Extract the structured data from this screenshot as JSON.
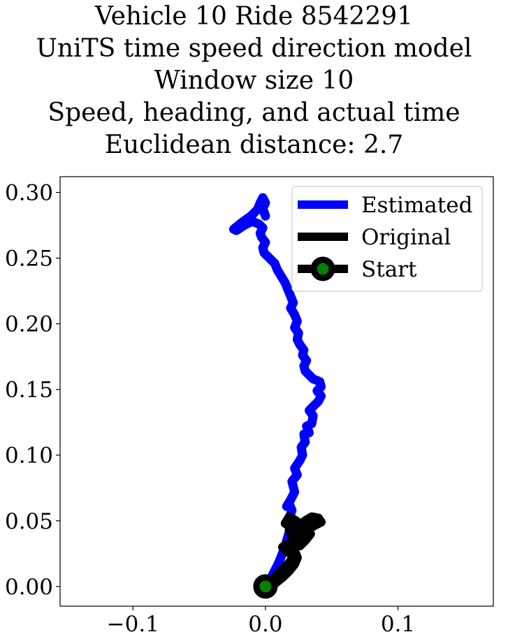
{
  "title_lines": [
    "Vehicle 10 Ride 8542291",
    "UniTS time speed direction model",
    "Window size 10",
    "Speed, heading, and actual time",
    "Euclidean distance: 2.7"
  ],
  "chart_data": {
    "type": "line",
    "title": "Vehicle 10 Ride 8542291\nUniTS time speed direction model\nWindow size 10\nSpeed, heading, and actual time\nEuclidean distance: 2.7",
    "xlabel": "",
    "ylabel": "",
    "xlim": [
      -0.155,
      0.172
    ],
    "ylim": [
      -0.015,
      0.312
    ],
    "x_ticks": [
      -0.1,
      0.0,
      0.1
    ],
    "x_tick_labels": [
      "−0.1",
      "0.0",
      "0.1"
    ],
    "y_ticks": [
      0.0,
      0.05,
      0.1,
      0.15,
      0.2,
      0.25,
      0.3
    ],
    "y_tick_labels": [
      "0.00",
      "0.05",
      "0.10",
      "0.15",
      "0.20",
      "0.25",
      "0.30"
    ],
    "grid": false,
    "legend_position": "top-right",
    "series": [
      {
        "name": "Estimated",
        "color": "#0000ff",
        "x": [
          0.0,
          0.005,
          0.01,
          0.014,
          0.017,
          0.019,
          0.018,
          0.02,
          0.018,
          0.016,
          0.019,
          0.022,
          0.02,
          0.024,
          0.022,
          0.026,
          0.028,
          0.027,
          0.03,
          0.029,
          0.033,
          0.031,
          0.035,
          0.036,
          0.033,
          0.037,
          0.04,
          0.042,
          0.039,
          0.042,
          0.041,
          0.036,
          0.033,
          0.03,
          0.029,
          0.031,
          0.028,
          0.029,
          0.026,
          0.024,
          0.025,
          0.022,
          0.024,
          0.022,
          0.019,
          0.021,
          0.019,
          0.017,
          0.015,
          0.012,
          0.009,
          0.007,
          0.003,
          -0.001,
          -0.002,
          0.0,
          -0.003,
          -0.004,
          -0.002,
          -0.005,
          -0.01,
          -0.016,
          -0.022,
          -0.024,
          -0.018,
          -0.011,
          -0.006,
          -0.004,
          -0.002,
          0.0,
          -0.002,
          0.0
        ],
        "y": [
          0.0,
          0.008,
          0.018,
          0.028,
          0.038,
          0.046,
          0.052,
          0.058,
          0.063,
          0.061,
          0.066,
          0.072,
          0.08,
          0.085,
          0.09,
          0.096,
          0.1,
          0.106,
          0.11,
          0.116,
          0.117,
          0.122,
          0.124,
          0.13,
          0.134,
          0.138,
          0.141,
          0.145,
          0.149,
          0.152,
          0.156,
          0.158,
          0.161,
          0.164,
          0.168,
          0.172,
          0.176,
          0.18,
          0.184,
          0.188,
          0.193,
          0.197,
          0.202,
          0.207,
          0.212,
          0.216,
          0.221,
          0.226,
          0.231,
          0.236,
          0.241,
          0.246,
          0.25,
          0.254,
          0.258,
          0.262,
          0.266,
          0.269,
          0.273,
          0.276,
          0.278,
          0.275,
          0.271,
          0.272,
          0.277,
          0.282,
          0.287,
          0.292,
          0.296,
          0.292,
          0.288,
          0.282
        ]
      },
      {
        "name": "Original",
        "color": "#000000",
        "x": [
          0.0,
          0.006,
          0.012,
          0.018,
          0.022,
          0.017,
          0.013,
          0.02,
          0.026,
          0.03,
          0.034,
          0.03,
          0.024,
          0.018,
          0.02,
          0.026,
          0.033,
          0.038,
          0.042,
          0.04,
          0.035,
          0.03,
          0.027,
          0.023,
          0.018,
          0.015,
          0.021,
          0.025,
          0.022,
          0.019,
          0.022,
          0.024,
          0.022,
          0.018,
          0.013,
          0.008,
          0.006
        ],
        "y": [
          0.0,
          0.006,
          0.012,
          0.018,
          0.024,
          0.026,
          0.03,
          0.034,
          0.031,
          0.035,
          0.04,
          0.044,
          0.046,
          0.043,
          0.039,
          0.04,
          0.044,
          0.047,
          0.049,
          0.052,
          0.053,
          0.05,
          0.047,
          0.05,
          0.053,
          0.048,
          0.044,
          0.04,
          0.035,
          0.032,
          0.027,
          0.022,
          0.017,
          0.012,
          0.007,
          0.003,
          0.001
        ]
      }
    ],
    "start": {
      "name": "Start",
      "x": 0.0,
      "y": 0.0,
      "marker_face": "#008000",
      "marker_edge": "#000000"
    }
  }
}
